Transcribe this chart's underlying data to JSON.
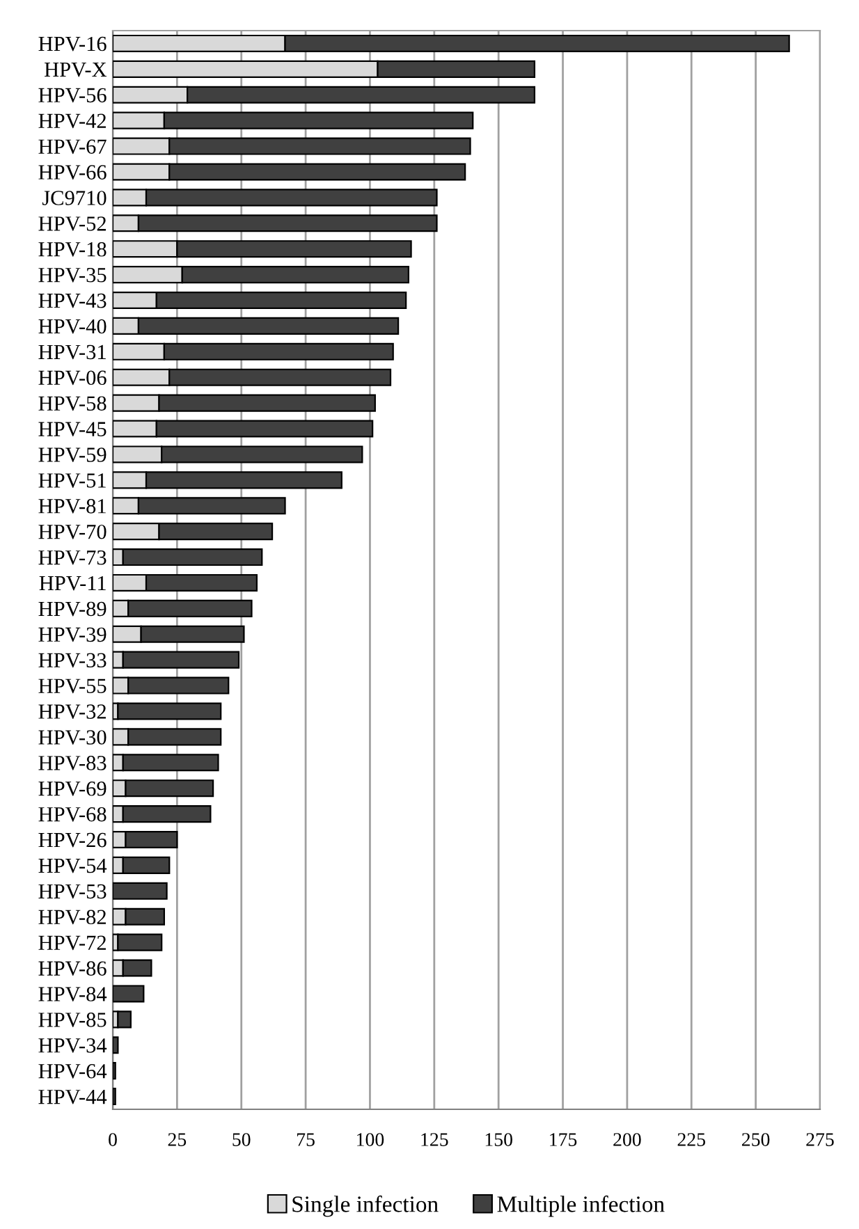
{
  "chart_data": {
    "type": "bar",
    "orientation": "horizontal",
    "stacked": true,
    "categories": [
      "HPV-16",
      "HPV-X",
      "HPV-56",
      "HPV-42",
      "HPV-67",
      "HPV-66",
      "JC9710",
      "HPV-52",
      "HPV-18",
      "HPV-35",
      "HPV-43",
      "HPV-40",
      "HPV-31",
      "HPV-06",
      "HPV-58",
      "HPV-45",
      "HPV-59",
      "HPV-51",
      "HPV-81",
      "HPV-70",
      "HPV-73",
      "HPV-11",
      "HPV-89",
      "HPV-39",
      "HPV-33",
      "HPV-55",
      "HPV-32",
      "HPV-30",
      "HPV-83",
      "HPV-69",
      "HPV-68",
      "HPV-26",
      "HPV-54",
      "HPV-53",
      "HPV-82",
      "HPV-72",
      "HPV-86",
      "HPV-84",
      "HPV-85",
      "HPV-34",
      "HPV-64",
      "HPV-44"
    ],
    "series": [
      {
        "name": "Single infection",
        "color": "#d9d9d9",
        "values": [
          67,
          103,
          29,
          20,
          22,
          22,
          13,
          10,
          25,
          27,
          17,
          10,
          20,
          22,
          18,
          17,
          19,
          13,
          10,
          18,
          4,
          13,
          6,
          11,
          4,
          6,
          2,
          6,
          4,
          5,
          4,
          5,
          4,
          0,
          5,
          2,
          4,
          0,
          2,
          0,
          0,
          0
        ]
      },
      {
        "name": "Multiple infection",
        "color": "#404040",
        "values": [
          196,
          61,
          135,
          120,
          117,
          115,
          113,
          116,
          91,
          88,
          97,
          101,
          89,
          86,
          84,
          84,
          78,
          76,
          57,
          44,
          54,
          43,
          48,
          40,
          45,
          39,
          40,
          36,
          37,
          34,
          34,
          20,
          18,
          21,
          15,
          17,
          11,
          12,
          5,
          2,
          1,
          1
        ]
      }
    ],
    "xlim": [
      0,
      275
    ],
    "xticks": [
      0,
      25,
      50,
      75,
      100,
      125,
      150,
      175,
      200,
      225,
      250,
      275
    ],
    "grid": "x",
    "legend": "bottom"
  }
}
